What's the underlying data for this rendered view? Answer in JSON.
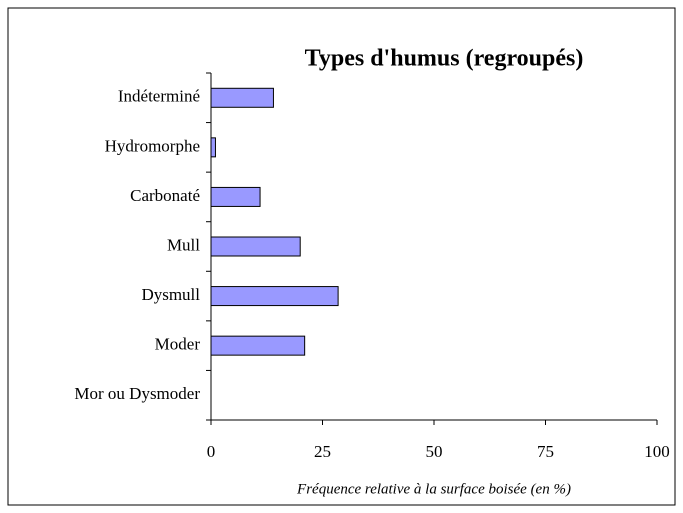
{
  "chart_data": {
    "type": "bar",
    "orientation": "horizontal",
    "title": "Types d'humus (regroupés)",
    "x_label": "Fréquence relative à la surface boisée (en %)",
    "categories": [
      "Indéterminé",
      "Hydromorphe",
      "Carbonaté",
      "Mull",
      "Dysmull",
      "Moder",
      "Mor ou Dysmoder"
    ],
    "values": [
      14,
      1,
      11,
      20,
      28.5,
      21,
      0
    ],
    "color": "#9999ff",
    "xlim": [
      0,
      100
    ],
    "xticks": [
      0,
      25,
      50,
      75,
      100
    ],
    "grid": false
  }
}
